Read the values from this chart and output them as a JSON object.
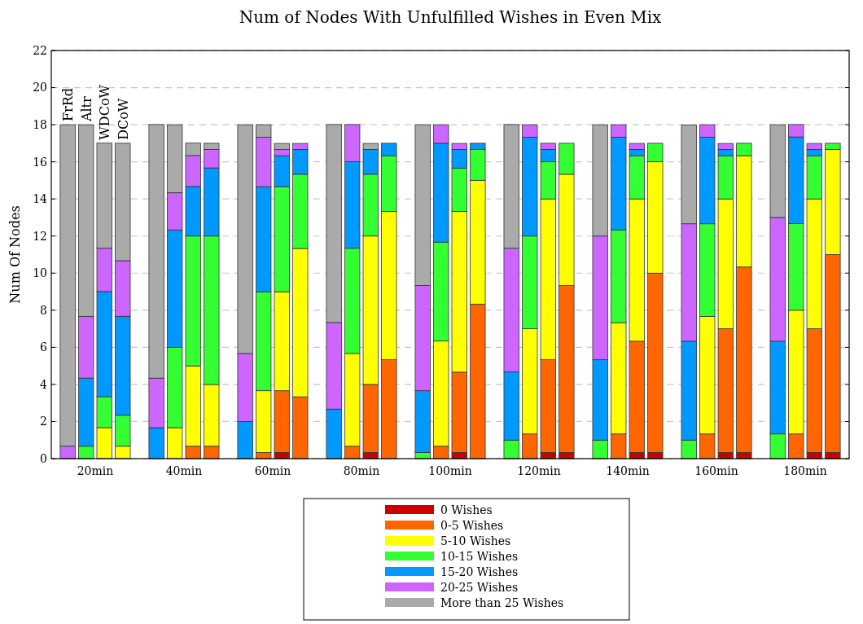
{
  "chart_data": [
    {
      "type": "bar",
      "stacked": true,
      "title": "Num of Nodes With Unfulfilled Wishes in Even Mix",
      "ylabel": "Num Of Nodes",
      "categories": [
        "20min",
        "40min",
        "60min",
        "80min",
        "100min",
        "120min",
        "140min",
        "160min",
        "180min"
      ],
      "ylim": [
        0,
        22
      ],
      "yticks": [
        0,
        2,
        4,
        6,
        8,
        10,
        12,
        14,
        16,
        18,
        20,
        22
      ],
      "grid": "y",
      "annotations": [
        "FrRd"
      ],
      "series": [
        {
          "color": "#33ff33",
          "values": [
            0,
            0,
            0,
            0,
            0.33,
            1,
            1,
            1,
            1.33
          ]
        },
        {
          "color": "#0099ff",
          "values": [
            0,
            1.67,
            2,
            2.67,
            3.33,
            3.67,
            4.33,
            5.33,
            5
          ]
        },
        {
          "color": "#cc66ff",
          "values": [
            0.67,
            2.67,
            3.67,
            4.67,
            5.67,
            6.67,
            6.67,
            6.33,
            6.67
          ]
        },
        {
          "color": "#aaaaaa",
          "values": [
            17.33,
            13.67,
            12.33,
            10.67,
            8.67,
            6.67,
            6,
            5.33,
            5
          ]
        }
      ]
    },
    {
      "type": "bar",
      "stacked": true,
      "ylim": [
        0,
        22
      ],
      "annotations": [
        "Altr"
      ],
      "series": [
        {
          "color": "#ff6600",
          "values": [
            0,
            0,
            0.33,
            0.67,
            0.67,
            1.33,
            1.33,
            1.33,
            1.33
          ]
        },
        {
          "color": "#ffff00",
          "values": [
            0,
            1.67,
            3.33,
            5,
            5.67,
            5.67,
            6,
            6.33,
            6.67
          ]
        },
        {
          "color": "#33ff33",
          "values": [
            0.67,
            4.33,
            5.33,
            5.67,
            5.33,
            5,
            5,
            5,
            4.67
          ]
        },
        {
          "color": "#0099ff",
          "values": [
            3.67,
            6.33,
            5.67,
            4.67,
            5.33,
            5.33,
            5,
            4.67,
            4.67
          ]
        },
        {
          "color": "#cc66ff",
          "values": [
            3.33,
            2,
            2.67,
            2,
            1,
            0.67,
            0.67,
            0.67,
            0.67
          ]
        },
        {
          "color": "#aaaaaa",
          "values": [
            10.33,
            3.67,
            0.67,
            0,
            0,
            0,
            0,
            0,
            0
          ]
        }
      ]
    },
    {
      "type": "bar",
      "stacked": true,
      "legend": "bottom",
      "ylim": [
        0,
        22
      ],
      "annotations": [
        "WDCoW"
      ],
      "series": [
        {
          "name": "0 Wishes",
          "color": "#cc0000",
          "values": [
            0,
            0,
            0.33,
            0.33,
            0.33,
            0.33,
            0.33,
            0.33,
            0.33
          ]
        },
        {
          "name": "0-5 Wishes",
          "color": "#ff6600",
          "values": [
            0,
            0.67,
            3.33,
            3.67,
            4.33,
            5,
            6,
            6.67,
            6.67
          ]
        },
        {
          "name": "5-10 Wishes",
          "color": "#ffff00",
          "values": [
            1.67,
            4.33,
            5.33,
            8,
            8.67,
            8.67,
            7.67,
            7,
            7
          ]
        },
        {
          "name": "10-15 Wishes",
          "color": "#33ff33",
          "values": [
            1.67,
            7,
            5.67,
            3.33,
            2.33,
            2,
            2.33,
            2.33,
            2.33
          ]
        },
        {
          "name": "15-20 Wishes",
          "color": "#0099ff",
          "values": [
            5.67,
            2.67,
            1.67,
            1.33,
            1,
            0.67,
            0.33,
            0.33,
            0.33
          ]
        },
        {
          "name": "20-25 Wishes",
          "color": "#cc66ff",
          "values": [
            2.33,
            1.67,
            0.33,
            0,
            0.33,
            0.33,
            0.33,
            0.33,
            0.33
          ]
        },
        {
          "name": "More than 25 Wishes",
          "color": "#aaaaaa",
          "values": [
            5.67,
            0.67,
            0.33,
            0.33,
            0,
            0,
            0,
            0,
            0
          ]
        }
      ]
    },
    {
      "type": "bar",
      "stacked": true,
      "ylim": [
        0,
        22
      ],
      "annotations": [
        "DCoW"
      ],
      "series": [
        {
          "color": "#cc0000",
          "values": [
            0,
            0,
            0,
            0,
            0,
            0.33,
            0.33,
            0.33,
            0.33
          ]
        },
        {
          "color": "#ff6600",
          "values": [
            0,
            0.67,
            3.33,
            5.33,
            8.33,
            9,
            9.67,
            10,
            10.67
          ]
        },
        {
          "color": "#ffff00",
          "values": [
            0.67,
            3.33,
            8,
            8,
            6.67,
            6,
            6,
            6,
            5.67
          ]
        },
        {
          "color": "#33ff33",
          "values": [
            1.67,
            8,
            4,
            3,
            1.67,
            1.67,
            1,
            0.67,
            0.33
          ]
        },
        {
          "color": "#0099ff",
          "values": [
            5.33,
            3.67,
            1.33,
            0.67,
            0.33,
            0,
            0,
            0,
            0
          ]
        },
        {
          "color": "#cc66ff",
          "values": [
            3,
            1,
            0.33,
            0,
            0,
            0,
            0,
            0,
            0
          ]
        },
        {
          "color": "#aaaaaa",
          "values": [
            6.33,
            0.33,
            0,
            0,
            0,
            0,
            0,
            0,
            0
          ]
        }
      ]
    }
  ]
}
